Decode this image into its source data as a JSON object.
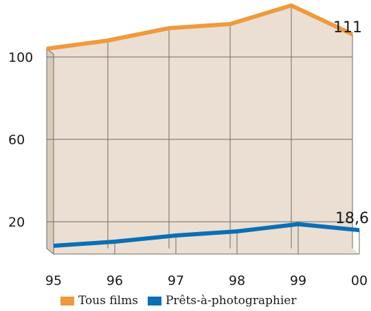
{
  "colors": {
    "panel": "#eadfd2",
    "panel_side": "#d9cbbb",
    "grid": "#6b6b6b",
    "orange": "#ef9a3c",
    "blue": "#0a6fb4"
  },
  "chart_data": {
    "type": "line",
    "categories": [
      "95",
      "96",
      "97",
      "98",
      "99",
      "00"
    ],
    "series": [
      {
        "name": "Tous films",
        "values": [
          104,
          108,
          114,
          116,
          125,
          111
        ],
        "color": "#ef9a3c"
      },
      {
        "name": "Prêts-à-photographier",
        "values": [
          11,
          13,
          16,
          18,
          21.5,
          18.6
        ],
        "color": "#0a6fb4"
      }
    ],
    "y_ticks": [
      "100",
      "60",
      "20"
    ],
    "y_tick_values": [
      100,
      60,
      20
    ],
    "data_labels": [
      {
        "text": "111",
        "series": 0,
        "index": 5
      },
      {
        "text": "18,6",
        "series": 1,
        "index": 5
      }
    ],
    "grid": true,
    "legend_position": "bottom"
  }
}
